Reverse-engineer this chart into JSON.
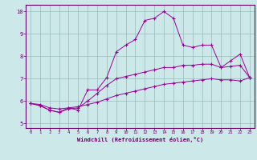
{
  "xlabel": "Windchill (Refroidissement éolien,°C)",
  "bg_color": "#cce8e8",
  "line_color": "#990099",
  "xlim": [
    -0.5,
    23.5
  ],
  "ylim": [
    4.8,
    10.3
  ],
  "xticks": [
    0,
    1,
    2,
    3,
    4,
    5,
    6,
    7,
    8,
    9,
    10,
    11,
    12,
    13,
    14,
    15,
    16,
    17,
    18,
    19,
    20,
    21,
    22,
    23
  ],
  "yticks": [
    5,
    6,
    7,
    8,
    9,
    10
  ],
  "line1_x": [
    0,
    1,
    2,
    3,
    4,
    5,
    6,
    7,
    8,
    9,
    10,
    11,
    12,
    13,
    14,
    15,
    16,
    17,
    18,
    19,
    20,
    21,
    22,
    23
  ],
  "line1_y": [
    5.9,
    5.8,
    5.6,
    5.5,
    5.7,
    5.6,
    6.5,
    6.5,
    7.05,
    8.2,
    8.5,
    8.75,
    9.6,
    9.7,
    10.0,
    9.7,
    8.5,
    8.4,
    8.5,
    8.5,
    7.5,
    7.8,
    8.1,
    7.05
  ],
  "line2_x": [
    0,
    1,
    2,
    3,
    4,
    5,
    6,
    7,
    8,
    9,
    10,
    11,
    12,
    13,
    14,
    15,
    16,
    17,
    18,
    19,
    20,
    21,
    22,
    23
  ],
  "line2_y": [
    5.9,
    5.8,
    5.6,
    5.5,
    5.65,
    5.7,
    6.0,
    6.35,
    6.7,
    7.0,
    7.1,
    7.2,
    7.3,
    7.4,
    7.5,
    7.5,
    7.6,
    7.6,
    7.65,
    7.65,
    7.5,
    7.55,
    7.6,
    7.05
  ],
  "line3_x": [
    0,
    1,
    2,
    3,
    4,
    5,
    6,
    7,
    8,
    9,
    10,
    11,
    12,
    13,
    14,
    15,
    16,
    17,
    18,
    19,
    20,
    21,
    22,
    23
  ],
  "line3_y": [
    5.9,
    5.85,
    5.7,
    5.65,
    5.7,
    5.75,
    5.85,
    5.95,
    6.1,
    6.25,
    6.35,
    6.45,
    6.55,
    6.65,
    6.75,
    6.8,
    6.85,
    6.9,
    6.95,
    7.0,
    6.95,
    6.95,
    6.9,
    7.05
  ]
}
